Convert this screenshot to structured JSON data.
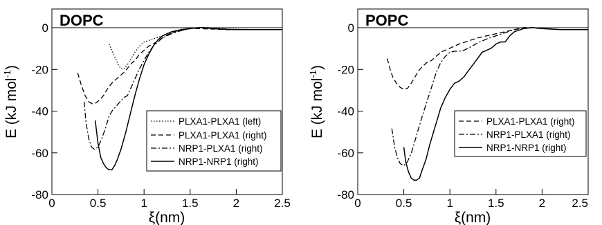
{
  "chart_data": [
    {
      "type": "line",
      "title": "DOPC",
      "xlabel": "ξ(nm)",
      "ylabel_main": "E (kJ mol",
      "ylabel_sup": "-1",
      "ylabel_tail": ")",
      "xlim": [
        0,
        2.5
      ],
      "ylim": [
        -80,
        10
      ],
      "xticks": [
        "0",
        "0.5",
        "1",
        "1.5",
        "2",
        "2.5"
      ],
      "yticks": [
        "-80",
        "-60",
        "-40",
        "-20",
        "0"
      ],
      "legend_position": "lower-right",
      "series": [
        {
          "name": "PLXA1-PLXA1 (left)",
          "style": "dotted",
          "x": [
            0.62,
            0.65,
            0.68,
            0.72,
            0.75,
            0.78,
            0.82,
            0.86,
            0.9,
            0.95,
            1.0,
            1.1,
            1.2,
            1.3,
            1.4,
            1.5,
            1.6,
            1.7,
            1.8,
            1.9,
            2.0,
            2.2,
            2.5
          ],
          "y": [
            -7,
            -10,
            -13,
            -17,
            -19,
            -19,
            -17,
            -14,
            -11,
            -8,
            -6,
            -4.5,
            -3,
            -1.5,
            -0.5,
            0.5,
            1,
            1,
            0.5,
            0.3,
            0.2,
            0,
            0
          ]
        },
        {
          "name": "PLXA1-PLXA1 (right)",
          "style": "dashed",
          "x": [
            0.28,
            0.32,
            0.36,
            0.4,
            0.44,
            0.48,
            0.52,
            0.56,
            0.6,
            0.65,
            0.7,
            0.75,
            0.8,
            0.85,
            0.9,
            0.95,
            1.0,
            1.05,
            1.1,
            1.2,
            1.3,
            1.4,
            1.5,
            1.6,
            1.7,
            1.8,
            1.9,
            2.0,
            2.2,
            2.5
          ],
          "y": [
            -21,
            -27,
            -32,
            -35,
            -36,
            -35.5,
            -34,
            -32,
            -29,
            -26,
            -24,
            -22,
            -20,
            -17,
            -15,
            -12,
            -10,
            -8,
            -7,
            -4,
            -1.5,
            0,
            0.5,
            0.5,
            0.3,
            0.2,
            0,
            0,
            0,
            0
          ]
        },
        {
          "name": "NRP1-PLXA1 (right)",
          "style": "dashdot",
          "x": [
            0.35,
            0.37,
            0.4,
            0.43,
            0.46,
            0.5,
            0.54,
            0.58,
            0.62,
            0.66,
            0.7,
            0.74,
            0.78,
            0.82,
            0.86,
            0.9,
            0.95,
            1.0,
            1.05,
            1.1,
            1.15,
            1.2,
            1.3,
            1.4,
            1.5,
            1.6,
            1.7,
            1.8,
            1.9,
            2.0,
            2.2,
            2.5
          ],
          "y": [
            -35,
            -45,
            -53,
            -57,
            -58,
            -57,
            -53,
            -48,
            -42,
            -39,
            -37,
            -35,
            -33,
            -32,
            -28,
            -24,
            -19,
            -15,
            -11,
            -8,
            -6,
            -4,
            -2,
            -0.5,
            0.5,
            1,
            1,
            0.5,
            0.2,
            0,
            0,
            0
          ]
        },
        {
          "name": "NRP1-NRP1 (right)",
          "style": "solid",
          "x": [
            0.47,
            0.5,
            0.53,
            0.56,
            0.59,
            0.62,
            0.65,
            0.68,
            0.71,
            0.75,
            0.8,
            0.85,
            0.9,
            0.95,
            1.0,
            1.05,
            1.1,
            1.15,
            1.2,
            1.3,
            1.4,
            1.5,
            1.6,
            1.7,
            1.8,
            1.9,
            2.0,
            2.2,
            2.5
          ],
          "y": [
            -44,
            -55,
            -62,
            -65,
            -67,
            -68,
            -68,
            -66,
            -63,
            -58,
            -50,
            -41,
            -32,
            -24,
            -17,
            -12,
            -8,
            -5,
            -3,
            -1,
            0,
            0.5,
            1,
            0.7,
            0.3,
            0.1,
            0,
            0,
            0
          ]
        }
      ]
    },
    {
      "type": "line",
      "title": "POPC",
      "xlabel": "ξ(nm)",
      "ylabel_main": "E (kJ mol",
      "ylabel_sup": "-1",
      "ylabel_tail": ")",
      "xlim": [
        0,
        2.5
      ],
      "ylim": [
        -80,
        10
      ],
      "xticks": [
        "0",
        "0.5",
        "1",
        "1.5",
        "2",
        "2.5"
      ],
      "yticks": [
        "-80",
        "-60",
        "-40",
        "-20",
        "0"
      ],
      "legend_position": "lower-right",
      "series": [
        {
          "name": "PLXA1-PLXA1 (right)",
          "style": "dashed",
          "x": [
            0.32,
            0.35,
            0.38,
            0.42,
            0.46,
            0.5,
            0.54,
            0.58,
            0.62,
            0.66,
            0.7,
            0.75,
            0.8,
            0.85,
            0.9,
            1.0,
            1.1,
            1.2,
            1.3,
            1.4,
            1.5,
            1.6,
            1.7,
            1.8,
            1.9,
            2.0,
            2.2,
            2.5
          ],
          "y": [
            -14,
            -19,
            -23,
            -26,
            -28,
            -29,
            -28.5,
            -26,
            -23,
            -20,
            -18,
            -16,
            -15,
            -13,
            -11,
            -9,
            -7,
            -5.5,
            -4,
            -3,
            -2,
            -1,
            0,
            1,
            1,
            0.5,
            0,
            0
          ]
        },
        {
          "name": "NRP1-PLXA1 (right)",
          "style": "dashdot",
          "x": [
            0.37,
            0.4,
            0.43,
            0.46,
            0.5,
            0.54,
            0.58,
            0.62,
            0.66,
            0.7,
            0.75,
            0.8,
            0.85,
            0.9,
            0.95,
            1.0,
            1.05,
            1.1,
            1.15,
            1.2,
            1.3,
            1.4,
            1.5,
            1.6,
            1.7,
            1.8,
            1.9,
            2.0,
            2.2,
            2.5
          ],
          "y": [
            -48,
            -57,
            -62,
            -65,
            -66,
            -64,
            -60,
            -54,
            -48,
            -42,
            -35,
            -28,
            -21,
            -16,
            -13,
            -11,
            -10.5,
            -10.5,
            -10,
            -9,
            -6.5,
            -4.5,
            -3,
            -1.5,
            0,
            0.8,
            0.8,
            0.5,
            0,
            0
          ]
        },
        {
          "name": "NRP1-NRP1 (right)",
          "style": "solid",
          "x": [
            0.5,
            0.52,
            0.55,
            0.58,
            0.61,
            0.64,
            0.67,
            0.7,
            0.74,
            0.78,
            0.82,
            0.86,
            0.9,
            0.95,
            1.0,
            1.05,
            1.1,
            1.15,
            1.2,
            1.25,
            1.3,
            1.35,
            1.4,
            1.45,
            1.5,
            1.55,
            1.6,
            1.65,
            1.7,
            1.8,
            1.9,
            2.0,
            2.2,
            2.5
          ],
          "y": [
            -57,
            -64,
            -69,
            -72,
            -73,
            -73,
            -72,
            -68,
            -63,
            -56,
            -50,
            -44,
            -38,
            -33,
            -29,
            -26,
            -25,
            -23,
            -20,
            -17,
            -14,
            -11,
            -10,
            -9,
            -7,
            -6,
            -6,
            -3,
            -1,
            0.5,
            1,
            0.5,
            0,
            0
          ]
        }
      ]
    }
  ]
}
